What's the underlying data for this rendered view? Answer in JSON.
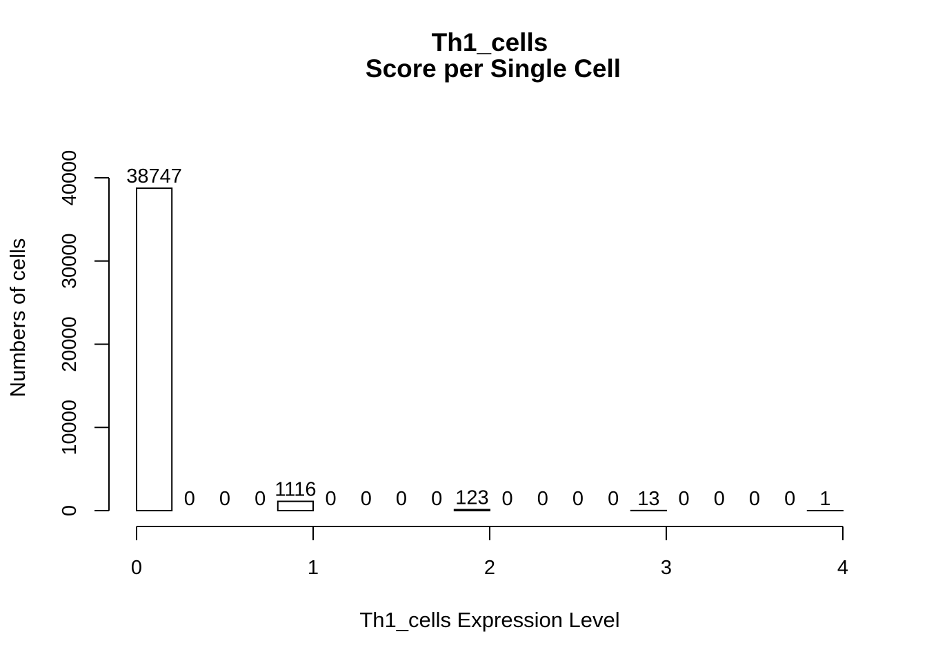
{
  "chart_data": {
    "type": "bar",
    "title": "Th1_cells",
    "subtitle": "Score per Single Cell",
    "xlabel": "Th1_cells Expression Level",
    "ylabel": "Numbers of cells",
    "x_bin_edges": [
      0,
      0.2,
      0.4,
      0.6,
      0.8,
      1.0,
      1.2,
      1.4,
      1.6,
      1.8,
      2.0,
      2.2,
      2.4,
      2.6,
      2.8,
      3.0,
      3.2,
      3.4,
      3.6,
      3.8,
      4.0
    ],
    "values": [
      38747,
      0,
      0,
      0,
      1116,
      0,
      0,
      0,
      0,
      123,
      0,
      0,
      0,
      0,
      13,
      0,
      0,
      0,
      0,
      1
    ],
    "data_labels": [
      "38747",
      "0",
      "0",
      "0",
      "1116",
      "0",
      "0",
      "0",
      "0",
      "123",
      "0",
      "0",
      "0",
      "0",
      "13",
      "0",
      "0",
      "0",
      "0",
      "1"
    ],
    "x_ticks": [
      0,
      1,
      2,
      3,
      4
    ],
    "x_tick_labels": [
      "0",
      "1",
      "2",
      "3",
      "4"
    ],
    "y_ticks": [
      0,
      10000,
      20000,
      30000,
      40000
    ],
    "y_tick_labels": [
      "0",
      "10000",
      "20000",
      "30000",
      "40000"
    ],
    "xlim": [
      0,
      4
    ],
    "ylim": [
      0,
      40000
    ],
    "grid": false,
    "legend": "none",
    "bar_fill": "#ffffff",
    "bar_stroke": "#000000"
  }
}
